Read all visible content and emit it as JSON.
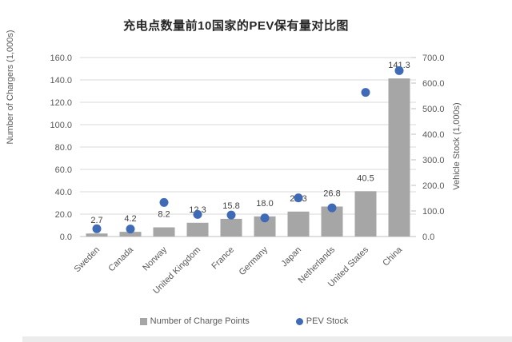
{
  "page": {
    "background": "#ffffff"
  },
  "chart_data": {
    "type": "bar+scatter",
    "title": "充电点数量前10国家的PEV保有量对比图",
    "categories": [
      "Sweden",
      "Canada",
      "Norway",
      "United Kingdom",
      "France",
      "Germany",
      "Japan",
      "Netherlands",
      "United States",
      "China"
    ],
    "series": [
      {
        "name": "Number of Charge Points",
        "chart_type": "bar",
        "axis": "left",
        "color": "#a6a6a6",
        "values": [
          2.7,
          4.2,
          8.2,
          12.3,
          15.8,
          18.0,
          22.3,
          26.8,
          40.5,
          141.3
        ],
        "data_labels": [
          "2.7",
          "4.2",
          "8.2",
          "12.3",
          "15.8",
          "18.0",
          "22.3",
          "26.8",
          "40.5",
          "141.3"
        ]
      },
      {
        "name": "PEV Stock",
        "chart_type": "scatter",
        "axis": "right",
        "color": "#3f6ab5",
        "values": [
          30.3,
          29.3,
          133.3,
          86.4,
          84.0,
          72.7,
          151.3,
          112.0,
          563.7,
          648.8
        ]
      }
    ],
    "left_axis": {
      "title": "Number of Chargers (1,000s)",
      "min": 0,
      "max": 160,
      "step": 20,
      "tick_labels": [
        "0.0",
        "20.0",
        "40.0",
        "60.0",
        "80.0",
        "100.0",
        "120.0",
        "140.0",
        "160.0"
      ]
    },
    "right_axis": {
      "title": "Vehicle Stock (1,000s)",
      "min": 0,
      "max": 700,
      "step": 100,
      "tick_labels": [
        "0.0",
        "100.0",
        "200.0",
        "300.0",
        "400.0",
        "500.0",
        "600.0",
        "700.0"
      ]
    },
    "legend": {
      "position": "bottom",
      "entries": [
        "Number of Charge Points",
        "PEV Stock"
      ]
    },
    "grid": true,
    "colors": {
      "gridline": "#d9d9d9",
      "zero_line": "#bfbfbf",
      "tick_text": "#595959",
      "data_label_text": "#404040",
      "title_text": "#262626"
    }
  }
}
